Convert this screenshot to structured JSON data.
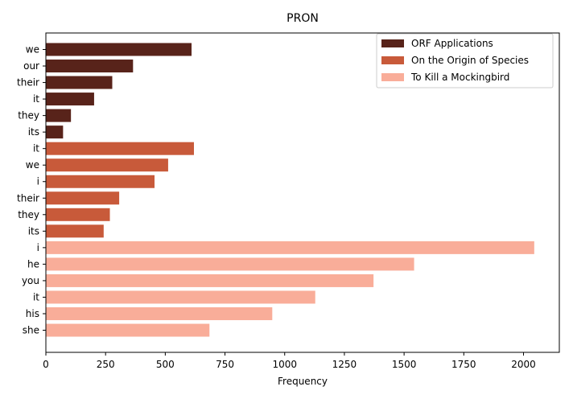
{
  "chart_data": {
    "type": "bar",
    "orientation": "horizontal",
    "title": "PRON",
    "xlabel": "Frequency",
    "ylabel": "",
    "xlim": [
      0,
      2150
    ],
    "xticks": [
      0,
      250,
      500,
      750,
      1000,
      1250,
      1500,
      1750,
      2000
    ],
    "grid": false,
    "legend_position": "top-right",
    "series": [
      {
        "name": "ORF Applications",
        "color": "#58231a",
        "categories": [
          "we",
          "our",
          "their",
          "it",
          "they",
          "its"
        ],
        "values": [
          610,
          365,
          278,
          202,
          105,
          72
        ]
      },
      {
        "name": "On the Origin of Species",
        "color": "#c85a3a",
        "categories": [
          "it",
          "we",
          "i",
          "their",
          "they",
          "its"
        ],
        "values": [
          620,
          512,
          455,
          307,
          268,
          242
        ]
      },
      {
        "name": "To Kill a Mockingbird",
        "color": "#f9ad99",
        "categories": [
          "i",
          "he",
          "you",
          "it",
          "his",
          "she"
        ],
        "values": [
          2045,
          1542,
          1372,
          1128,
          948,
          685
        ]
      }
    ]
  }
}
